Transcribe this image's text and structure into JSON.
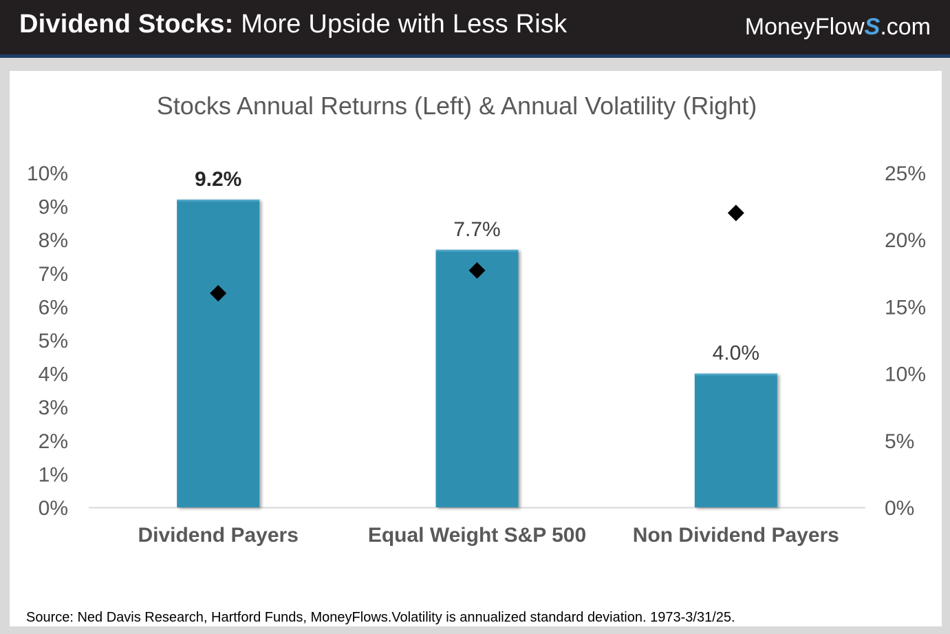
{
  "header": {
    "title_bold": "Dividend Stocks:",
    "title_rest": " More Upside with Less Risk",
    "brand_main": "MoneyFlow",
    "brand_s": "S",
    "brand_tld": ".com"
  },
  "colors": {
    "bar": "#2f8fb1",
    "marker": "#000000",
    "header_bg": "#231f20",
    "header_stripe": "#1b3f66"
  },
  "chart_data": {
    "type": "bar",
    "title": "Stocks Annual Returns (Left) & Annual Volatility (Right)",
    "categories": [
      "Dividend Payers",
      "Equal Weight S&P 500",
      "Non Dividend Payers"
    ],
    "series": [
      {
        "type": "bar",
        "axis": "left",
        "values": [
          9.2,
          7.7,
          4.0
        ],
        "labels": [
          "9.2%",
          "7.7%",
          "4.0%"
        ]
      },
      {
        "type": "scatter",
        "axis": "right",
        "values": [
          16.0,
          17.7,
          22.0
        ]
      }
    ],
    "left_axis": {
      "range": [
        0,
        10
      ],
      "ticks": [
        "0%",
        "1%",
        "2%",
        "3%",
        "4%",
        "5%",
        "6%",
        "7%",
        "8%",
        "9%",
        "10%"
      ]
    },
    "right_axis": {
      "range": [
        0,
        25
      ],
      "ticks": [
        "0%",
        "5%",
        "10%",
        "15%",
        "20%",
        "25%"
      ]
    },
    "grid": false,
    "legend": "none",
    "source": "Source: Ned Davis Research, Hartford Funds, MoneyFlows.Volatility is annualized standard deviation. 1973-3/31/25."
  }
}
